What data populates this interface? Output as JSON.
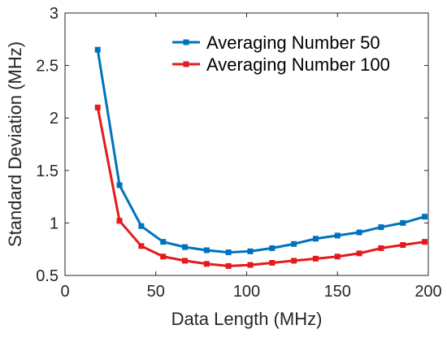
{
  "chart_data": {
    "type": "line",
    "xlabel": "Data Length (MHz)",
    "ylabel": "Standard  Deviation (MHz)",
    "xlim": [
      0,
      200
    ],
    "ylim": [
      0.5,
      3
    ],
    "xticks": [
      0,
      50,
      100,
      150,
      200
    ],
    "xtick_labels": [
      "0",
      "50",
      "100",
      "150",
      "200"
    ],
    "yticks": [
      0.5,
      1,
      1.5,
      2,
      2.5,
      3
    ],
    "ytick_labels": [
      "0.5",
      "1",
      "1.5",
      "2",
      "2.5",
      "3"
    ],
    "grid": false,
    "legend_position": "top-right",
    "series": [
      {
        "name": "Averaging Number 50",
        "color": "#0072BD",
        "marker": "square",
        "x": [
          18,
          30,
          42,
          54,
          66,
          78,
          90,
          102,
          114,
          126,
          138,
          150,
          162,
          174,
          186,
          198
        ],
        "y": [
          2.65,
          1.36,
          0.97,
          0.82,
          0.77,
          0.74,
          0.72,
          0.73,
          0.76,
          0.8,
          0.85,
          0.88,
          0.91,
          0.96,
          1.0,
          1.06
        ]
      },
      {
        "name": "Averaging Number 100",
        "color": "#E41A1C",
        "marker": "square",
        "x": [
          18,
          30,
          42,
          54,
          66,
          78,
          90,
          102,
          114,
          126,
          138,
          150,
          162,
          174,
          186,
          198
        ],
        "y": [
          2.1,
          1.02,
          0.78,
          0.68,
          0.64,
          0.61,
          0.59,
          0.6,
          0.62,
          0.64,
          0.66,
          0.68,
          0.71,
          0.76,
          0.79,
          0.82
        ]
      }
    ]
  }
}
